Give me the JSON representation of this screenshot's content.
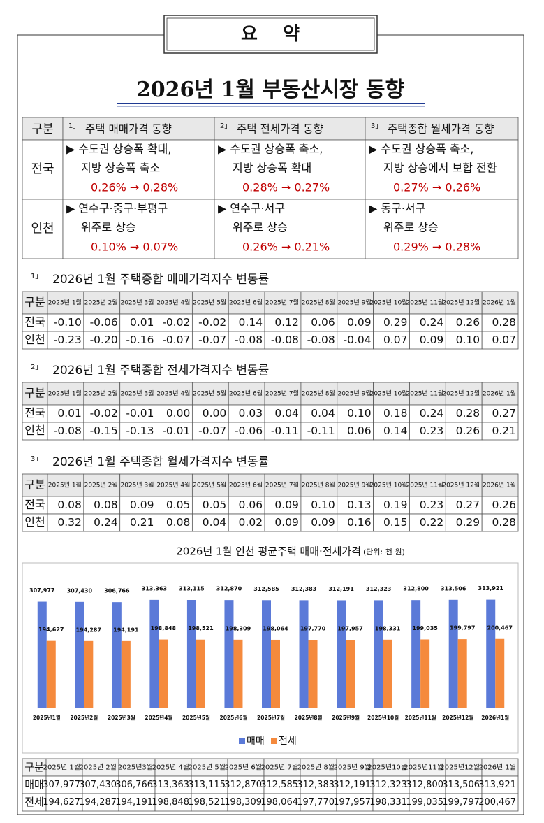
{
  "header": {
    "box": "요    약",
    "title": "2026년 1월 부동산시장 동향"
  },
  "summary": {
    "corner": "구분",
    "columns": [
      {
        "note": "1」",
        "title": "주택 매매가격 동향"
      },
      {
        "note": "2」",
        "title": "주택 전세가격 동향"
      },
      {
        "note": "3」",
        "title": "주택종합 월세가격 동향"
      }
    ],
    "rows": [
      {
        "label": "전국",
        "cells": [
          {
            "lines": [
              "▶ 수도권 상승폭 확대,",
              "지방 상승폭 축소"
            ],
            "change": "0.26% → 0.28%"
          },
          {
            "lines": [
              "▶ 수도권 상승폭 축소,",
              "지방 상승폭 확대"
            ],
            "change": "0.28% → 0.27%"
          },
          {
            "lines": [
              "▶ 수도권 상승폭 축소,",
              "지방 상승에서 보합 전환"
            ],
            "change": "0.27% → 0.26%"
          }
        ]
      },
      {
        "label": "인천",
        "cells": [
          {
            "lines": [
              "▶ 연수구·중구·부평구",
              "위주로 상승"
            ],
            "change": "0.10% → 0.07%"
          },
          {
            "lines": [
              "▶ 연수구·서구",
              "위주로 상승"
            ],
            "change": "0.26% → 0.21%"
          },
          {
            "lines": [
              "▶ 동구·서구",
              "위주로 상승"
            ],
            "change": "0.29% → 0.28%"
          }
        ]
      }
    ]
  },
  "tables": [
    {
      "note": "1」",
      "title": "2026년 1월 주택종합 매매가격지수 변동률",
      "header": [
        "구분",
        "2025년 1월",
        "2025년 2월",
        "2025년 3월",
        "2025년 4월",
        "2025년 5월",
        "2025년 6월",
        "2025년 7월",
        "2025년 8월",
        "2025년 9월",
        "2025년 10월",
        "2025년 11월",
        "2025년 12월",
        "2026년 1월"
      ],
      "rows": [
        [
          "전국",
          "-0.10",
          "-0.06",
          "0.01",
          "-0.02",
          "-0.02",
          "0.14",
          "0.12",
          "0.06",
          "0.09",
          "0.29",
          "0.24",
          "0.26",
          "0.28"
        ],
        [
          "인천",
          "-0.23",
          "-0.20",
          "-0.16",
          "-0.07",
          "-0.07",
          "-0.08",
          "-0.08",
          "-0.08",
          "-0.04",
          "0.07",
          "0.09",
          "0.10",
          "0.07"
        ]
      ]
    },
    {
      "note": "2」",
      "title": "2026년 1월 주택종합 전세가격지수 변동률",
      "header": [
        "구분",
        "2025년 1월",
        "2025년 2월",
        "2025년 3월",
        "2025년 4월",
        "2025년 5월",
        "2025년 6월",
        "2025년 7월",
        "2025년 8월",
        "2025년 9월",
        "2025년 10월",
        "2025년 11월",
        "2025년 12월",
        "2026년 1월"
      ],
      "rows": [
        [
          "전국",
          "0.01",
          "-0.02",
          "-0.01",
          "0.00",
          "0.00",
          "0.03",
          "0.04",
          "0.04",
          "0.10",
          "0.18",
          "0.24",
          "0.28",
          "0.27"
        ],
        [
          "인천",
          "-0.08",
          "-0.15",
          "-0.13",
          "-0.01",
          "-0.07",
          "-0.06",
          "-0.11",
          "-0.11",
          "0.06",
          "0.14",
          "0.23",
          "0.26",
          "0.21"
        ]
      ]
    },
    {
      "note": "3」",
      "title": "2026년 1월 주택종합 월세가격지수 변동률",
      "header": [
        "구분",
        "2025년 1월",
        "2025년 2월",
        "2025년 3월",
        "2025년 4월",
        "2025년 5월",
        "2025년 6월",
        "2025년 7월",
        "2025년 8월",
        "2025년 9월",
        "2025년 10월",
        "2025년 11월",
        "2025년 12월",
        "2026년 1월"
      ],
      "rows": [
        [
          "전국",
          "0.08",
          "0.08",
          "0.09",
          "0.05",
          "0.05",
          "0.06",
          "0.09",
          "0.10",
          "0.13",
          "0.19",
          "0.23",
          "0.27",
          "0.26"
        ],
        [
          "인천",
          "0.32",
          "0.24",
          "0.21",
          "0.08",
          "0.04",
          "0.02",
          "0.09",
          "0.09",
          "0.16",
          "0.15",
          "0.22",
          "0.29",
          "0.28"
        ]
      ]
    }
  ],
  "chart_data": {
    "type": "bar",
    "title": "2026년 1월 인천 평균주택 매매·전세가격",
    "subtitle": "(단위: 천 원)",
    "categories": [
      "2025년1월",
      "2025년2월",
      "2025년3월",
      "2025년4월",
      "2025년5월",
      "2025년6월",
      "2025년7월",
      "2025년8월",
      "2025년9월",
      "2025년10월",
      "2025년11월",
      "2025년12월",
      "2026년1월"
    ],
    "ylim": [
      0,
      400000
    ],
    "legend": "bottom",
    "series": [
      {
        "name": "매매",
        "color": "#5b7ad8",
        "values": [
          307977,
          307430,
          306766,
          313363,
          313115,
          312870,
          312585,
          312383,
          312191,
          312323,
          312800,
          313506,
          313921
        ],
        "value_labels": [
          "307,977",
          "307,430",
          "306,766",
          "313,363",
          "313,115",
          "312,870",
          "312,585",
          "312,383",
          "312,191",
          "312,323",
          "312,800",
          "313,506",
          "313,921"
        ]
      },
      {
        "name": "전세",
        "color": "#f58a3d",
        "values": [
          194627,
          194287,
          194191,
          198848,
          198521,
          198309,
          198064,
          197770,
          197957,
          198331,
          199035,
          199797,
          200467
        ],
        "value_labels": [
          "194,627",
          "194,287",
          "194,191",
          "198,848",
          "198,521",
          "198,309",
          "198,064",
          "197,770",
          "197,957",
          "198,331",
          "199,035",
          "199,797",
          "200,467"
        ]
      }
    ]
  },
  "price_table": {
    "header": [
      "구분",
      "2025년 1월",
      "2025년 2월",
      "2025년3월",
      "2025년 4월",
      "2025년 5월",
      "2025년 6월",
      "2025년 7월",
      "2025년 8월",
      "2025년 9월",
      "2025년10월",
      "2025년11월",
      "2025년12월",
      "2026년 1월"
    ],
    "rows": [
      [
        "매매",
        "307,977",
        "307,430",
        "306,766",
        "313,363",
        "313,115",
        "312,870",
        "312,585",
        "312,383",
        "312,191",
        "312,323",
        "312,800",
        "313,506",
        "313,921"
      ],
      [
        "전세",
        "194,627",
        "194,287",
        "194,191",
        "198,848",
        "198,521",
        "198,309",
        "198,064",
        "197,770",
        "197,957",
        "198,331",
        "199,035",
        "199,797",
        "200,467"
      ]
    ]
  }
}
